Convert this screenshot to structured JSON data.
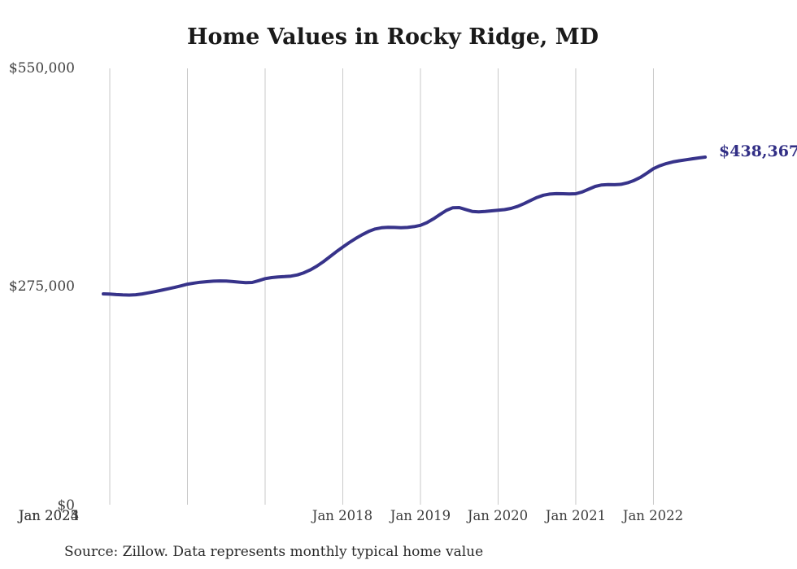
{
  "chart": {
    "title": "Home Values in Rocky Ridge, MD",
    "end_label": "$438,367",
    "source": "Source: Zillow. Data represents monthly typical home value",
    "y_ticks": [
      {
        "label": "$550,000",
        "value": 550000
      },
      {
        "label": "$275,000",
        "value": 275000
      },
      {
        "label": "$0",
        "value": 0
      }
    ],
    "x_ticks": [
      "Jan 2018",
      "Jan 2019",
      "Jan 2020",
      "Jan 2021",
      "Jan 2022",
      "Jan 2023",
      "Jan 2024",
      "Jan 2025"
    ]
  },
  "colors": {
    "background": "#ffffff",
    "line": "#37338a",
    "end_label": "#312e85",
    "grid": "#c9c9c9",
    "axis_text": "#3d3d3d",
    "title_text": "#1a1a1a",
    "source_text": "#2a2a2a"
  },
  "chart_data": {
    "type": "line",
    "title": "Home Values in Rocky Ridge, MD",
    "xlabel": "",
    "ylabel": "",
    "y_unit": "USD",
    "ylim": [
      0,
      550000
    ],
    "grid": "vertical-only",
    "legend": "none",
    "frequency": "monthly",
    "series_name": "Typical home value",
    "annotation": {
      "month": "2025-09",
      "value": 438367,
      "label": "$438,367"
    },
    "months": [
      "2017-12",
      "2018-01",
      "2018-02",
      "2018-03",
      "2018-04",
      "2018-05",
      "2018-06",
      "2018-07",
      "2018-08",
      "2018-09",
      "2018-10",
      "2018-11",
      "2018-12",
      "2019-01",
      "2019-02",
      "2019-03",
      "2019-04",
      "2019-05",
      "2019-06",
      "2019-07",
      "2019-08",
      "2019-09",
      "2019-10",
      "2019-11",
      "2019-12",
      "2020-01",
      "2020-02",
      "2020-03",
      "2020-04",
      "2020-05",
      "2020-06",
      "2020-07",
      "2020-08",
      "2020-09",
      "2020-10",
      "2020-11",
      "2020-12",
      "2021-01",
      "2021-02",
      "2021-03",
      "2021-04",
      "2021-05",
      "2021-06",
      "2021-07",
      "2021-08",
      "2021-09",
      "2021-10",
      "2021-11",
      "2021-12",
      "2022-01",
      "2022-02",
      "2022-03",
      "2022-04",
      "2022-05",
      "2022-06",
      "2022-07",
      "2022-08",
      "2022-09",
      "2022-10",
      "2022-11",
      "2022-12",
      "2023-01",
      "2023-02",
      "2023-03",
      "2023-04",
      "2023-05",
      "2023-06",
      "2023-07",
      "2023-08",
      "2023-09",
      "2023-10",
      "2023-11",
      "2023-12",
      "2024-01",
      "2024-02",
      "2024-03",
      "2024-04",
      "2024-05",
      "2024-06",
      "2024-07",
      "2024-08",
      "2024-09",
      "2024-10",
      "2024-11",
      "2024-12",
      "2025-01",
      "2025-02",
      "2025-03",
      "2025-04",
      "2025-05",
      "2025-06",
      "2025-07",
      "2025-08",
      "2025-09"
    ],
    "values": [
      266300,
      266000,
      265400,
      265000,
      264800,
      265200,
      266200,
      267600,
      269200,
      270900,
      272600,
      274400,
      276300,
      278500,
      279800,
      280900,
      281700,
      282300,
      282600,
      282400,
      281800,
      281000,
      280400,
      280600,
      282900,
      285400,
      286800,
      287600,
      288000,
      288600,
      290200,
      292800,
      296500,
      301200,
      306800,
      313000,
      319200,
      325200,
      330800,
      336000,
      340800,
      344900,
      347900,
      349500,
      350100,
      349900,
      349600,
      349900,
      350900,
      352500,
      355900,
      360600,
      366100,
      371300,
      374700,
      374900,
      372400,
      370000,
      369400,
      369900,
      370800,
      371500,
      372300,
      373800,
      376300,
      379800,
      383800,
      387600,
      390400,
      391900,
      392400,
      392300,
      392100,
      392300,
      394500,
      398000,
      401500,
      403300,
      403800,
      403600,
      404200,
      406000,
      409000,
      413000,
      418200,
      423800,
      427500,
      430300,
      432300,
      433800,
      435000,
      436200,
      437300,
      438367
    ]
  }
}
